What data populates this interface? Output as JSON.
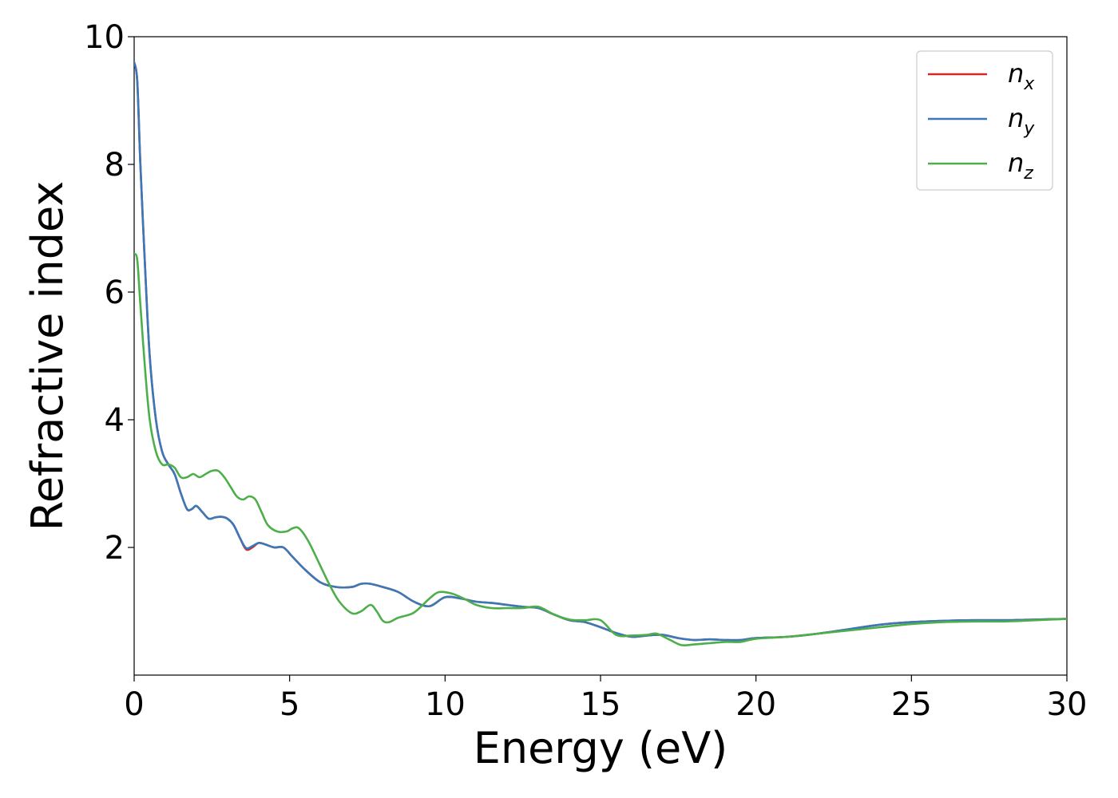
{
  "chart_data": {
    "type": "line",
    "xlabel": "Energy (eV)",
    "ylabel": "Refractive index",
    "xlim": [
      0,
      30
    ],
    "ylim": [
      0,
      10
    ],
    "x_ticks": [
      "0",
      "5",
      "10",
      "15",
      "20",
      "25",
      "30"
    ],
    "y_ticks": [
      "2",
      "4",
      "6",
      "8",
      "10"
    ],
    "grid": false,
    "legend_position": "top-right",
    "series": [
      {
        "name": "n_x",
        "label_base": "n",
        "label_sub": "x",
        "color": "#d62728",
        "x": [
          0,
          0.1,
          0.2,
          0.35,
          0.5,
          0.7,
          0.9,
          1.1,
          1.3,
          1.5,
          1.7,
          1.85,
          2.0,
          2.2,
          2.4,
          2.6,
          2.8,
          3.0,
          3.2,
          3.4,
          3.6,
          3.8,
          4.0,
          4.2,
          4.5,
          4.8,
          5.1,
          5.5,
          6.0,
          6.5,
          7.0,
          7.3,
          7.6,
          8.0,
          8.5,
          9.0,
          9.5,
          10.0,
          10.5,
          11.0,
          11.5,
          12.0,
          12.5,
          13.0,
          13.5,
          14.0,
          14.5,
          15.0,
          15.5,
          16.0,
          16.5,
          17.0,
          17.5,
          18.0,
          18.5,
          19.0,
          19.5,
          20.0,
          21.0,
          22.0,
          23.0,
          24.0,
          25.0,
          26.0,
          27.0,
          28.0,
          29.0,
          30.0
        ],
        "y": [
          9.6,
          9.3,
          8.0,
          6.4,
          5.0,
          4.0,
          3.5,
          3.3,
          3.15,
          2.85,
          2.6,
          2.6,
          2.65,
          2.55,
          2.45,
          2.47,
          2.48,
          2.45,
          2.35,
          2.15,
          1.97,
          2.0,
          2.07,
          2.05,
          2.0,
          2.0,
          1.85,
          1.65,
          1.45,
          1.38,
          1.38,
          1.43,
          1.43,
          1.38,
          1.3,
          1.15,
          1.08,
          1.22,
          1.2,
          1.15,
          1.13,
          1.1,
          1.07,
          1.05,
          0.95,
          0.86,
          0.83,
          0.75,
          0.66,
          0.6,
          0.62,
          0.63,
          0.58,
          0.55,
          0.56,
          0.55,
          0.55,
          0.58,
          0.6,
          0.65,
          0.72,
          0.79,
          0.83,
          0.85,
          0.86,
          0.86,
          0.87,
          0.88
        ]
      },
      {
        "name": "n_y",
        "label_base": "n",
        "label_sub": "y",
        "color": "#3a78b8",
        "x": [
          0,
          0.1,
          0.2,
          0.35,
          0.5,
          0.7,
          0.9,
          1.1,
          1.3,
          1.5,
          1.7,
          1.85,
          2.0,
          2.2,
          2.4,
          2.6,
          2.8,
          3.0,
          3.2,
          3.4,
          3.6,
          3.8,
          4.0,
          4.2,
          4.5,
          4.8,
          5.1,
          5.5,
          6.0,
          6.5,
          7.0,
          7.3,
          7.6,
          8.0,
          8.5,
          9.0,
          9.5,
          10.0,
          10.5,
          11.0,
          11.5,
          12.0,
          12.5,
          13.0,
          13.5,
          14.0,
          14.5,
          15.0,
          15.5,
          16.0,
          16.5,
          17.0,
          17.5,
          18.0,
          18.5,
          19.0,
          19.5,
          20.0,
          21.0,
          22.0,
          23.0,
          24.0,
          25.0,
          26.0,
          27.0,
          28.0,
          29.0,
          30.0
        ],
        "y": [
          9.6,
          9.3,
          8.0,
          6.4,
          5.0,
          4.0,
          3.5,
          3.3,
          3.15,
          2.85,
          2.6,
          2.6,
          2.65,
          2.55,
          2.45,
          2.47,
          2.48,
          2.45,
          2.35,
          2.15,
          1.99,
          2.02,
          2.07,
          2.05,
          2.0,
          2.0,
          1.85,
          1.65,
          1.45,
          1.38,
          1.38,
          1.43,
          1.43,
          1.38,
          1.3,
          1.15,
          1.08,
          1.22,
          1.2,
          1.15,
          1.13,
          1.1,
          1.07,
          1.05,
          0.95,
          0.86,
          0.83,
          0.75,
          0.66,
          0.6,
          0.62,
          0.63,
          0.58,
          0.55,
          0.56,
          0.55,
          0.55,
          0.58,
          0.6,
          0.65,
          0.72,
          0.79,
          0.83,
          0.85,
          0.86,
          0.86,
          0.87,
          0.88
        ]
      },
      {
        "name": "n_z",
        "label_base": "n",
        "label_sub": "z",
        "color": "#4daf4a",
        "x": [
          0,
          0.1,
          0.2,
          0.35,
          0.5,
          0.7,
          0.9,
          1.1,
          1.3,
          1.5,
          1.7,
          1.9,
          2.1,
          2.3,
          2.5,
          2.7,
          2.9,
          3.1,
          3.3,
          3.5,
          3.7,
          3.9,
          4.1,
          4.3,
          4.6,
          4.9,
          5.1,
          5.3,
          5.6,
          6.0,
          6.3,
          6.6,
          7.0,
          7.3,
          7.6,
          7.8,
          8.0,
          8.2,
          8.5,
          9.0,
          9.5,
          9.8,
          10.2,
          10.6,
          11.0,
          11.5,
          12.0,
          12.5,
          13.0,
          13.5,
          14.0,
          14.5,
          15.0,
          15.5,
          16.0,
          16.5,
          16.8,
          17.2,
          17.6,
          18.0,
          18.5,
          19.0,
          19.5,
          20.0,
          21.0,
          22.0,
          23.0,
          24.0,
          25.0,
          26.0,
          27.0,
          28.0,
          29.0,
          30.0
        ],
        "y": [
          6.6,
          6.5,
          5.8,
          4.8,
          4.0,
          3.5,
          3.3,
          3.3,
          3.25,
          3.1,
          3.1,
          3.15,
          3.1,
          3.15,
          3.2,
          3.2,
          3.1,
          2.95,
          2.8,
          2.75,
          2.8,
          2.75,
          2.55,
          2.35,
          2.25,
          2.25,
          2.3,
          2.3,
          2.1,
          1.7,
          1.4,
          1.15,
          0.97,
          1.0,
          1.1,
          1.0,
          0.85,
          0.83,
          0.9,
          0.98,
          1.2,
          1.3,
          1.28,
          1.2,
          1.1,
          1.05,
          1.05,
          1.05,
          1.07,
          0.95,
          0.87,
          0.86,
          0.86,
          0.63,
          0.62,
          0.63,
          0.65,
          0.56,
          0.47,
          0.48,
          0.5,
          0.52,
          0.52,
          0.57,
          0.6,
          0.65,
          0.7,
          0.75,
          0.8,
          0.83,
          0.84,
          0.84,
          0.86,
          0.88
        ]
      }
    ]
  }
}
